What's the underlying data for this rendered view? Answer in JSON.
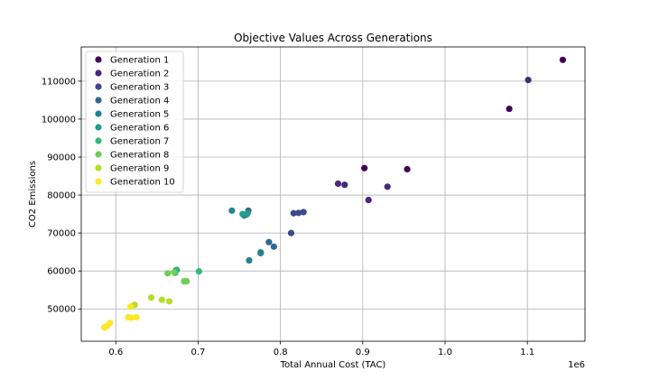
{
  "chart_data": {
    "type": "scatter",
    "title": "Objective Values Across Generations",
    "xlabel": "Total Annual Cost (TAC)",
    "ylabel": "CO2 Emissions",
    "x_offset_label": "1e6",
    "xlim": [
      0.558,
      1.17
    ],
    "ylim": [
      41500,
      119000
    ],
    "xticks": [
      "0.6",
      "0.7",
      "0.8",
      "0.9",
      "1.0",
      "1.1"
    ],
    "yticks": [
      "50000",
      "60000",
      "70000",
      "80000",
      "90000",
      "100000",
      "110000"
    ],
    "grid": true,
    "legend_position": "top-left",
    "series": [
      {
        "name": "Generation 1",
        "color": "#440154",
        "points": [
          [
            1.143,
            115600
          ],
          [
            1.078,
            102700
          ],
          [
            0.954,
            86800
          ],
          [
            0.902,
            87100
          ]
        ]
      },
      {
        "name": "Generation 2",
        "color": "#482878",
        "points": [
          [
            1.101,
            110300
          ],
          [
            0.93,
            82200
          ],
          [
            0.907,
            78700
          ],
          [
            0.878,
            82700
          ],
          [
            0.87,
            83000
          ]
        ]
      },
      {
        "name": "Generation 3",
        "color": "#3e4989",
        "points": [
          [
            0.828,
            75500
          ],
          [
            0.822,
            75300
          ],
          [
            0.816,
            75200
          ],
          [
            0.813,
            70000
          ]
        ]
      },
      {
        "name": "Generation 4",
        "color": "#31688e",
        "points": [
          [
            0.792,
            66400
          ],
          [
            0.786,
            67600
          ],
          [
            0.776,
            64900
          ],
          [
            0.761,
            75900
          ]
        ]
      },
      {
        "name": "Generation 5",
        "color": "#26828e",
        "points": [
          [
            0.776,
            64700
          ],
          [
            0.762,
            62800
          ],
          [
            0.759,
            74900
          ],
          [
            0.756,
            74600
          ],
          [
            0.741,
            75900
          ]
        ]
      },
      {
        "name": "Generation 6",
        "color": "#1f9e89",
        "points": [
          [
            0.76,
            75200
          ],
          [
            0.754,
            75000
          ],
          [
            0.674,
            60300
          ]
        ]
      },
      {
        "name": "Generation 7",
        "color": "#35b779",
        "points": [
          [
            0.701,
            59900
          ],
          [
            0.673,
            60200
          ],
          [
            0.672,
            59500
          ]
        ]
      },
      {
        "name": "Generation 8",
        "color": "#6ece58",
        "points": [
          [
            0.686,
            57300
          ],
          [
            0.683,
            57300
          ],
          [
            0.671,
            59600
          ],
          [
            0.663,
            59400
          ]
        ]
      },
      {
        "name": "Generation 9",
        "color": "#b5de2b",
        "points": [
          [
            0.665,
            52000
          ],
          [
            0.656,
            52400
          ],
          [
            0.643,
            53000
          ],
          [
            0.623,
            51100
          ],
          [
            0.619,
            50700
          ]
        ]
      },
      {
        "name": "Generation 10",
        "color": "#fde725",
        "points": [
          [
            0.625,
            47800
          ],
          [
            0.619,
            47700
          ],
          [
            0.615,
            47800
          ],
          [
            0.618,
            50600
          ],
          [
            0.593,
            46300
          ],
          [
            0.589,
            45500
          ],
          [
            0.586,
            45100
          ]
        ]
      }
    ]
  }
}
